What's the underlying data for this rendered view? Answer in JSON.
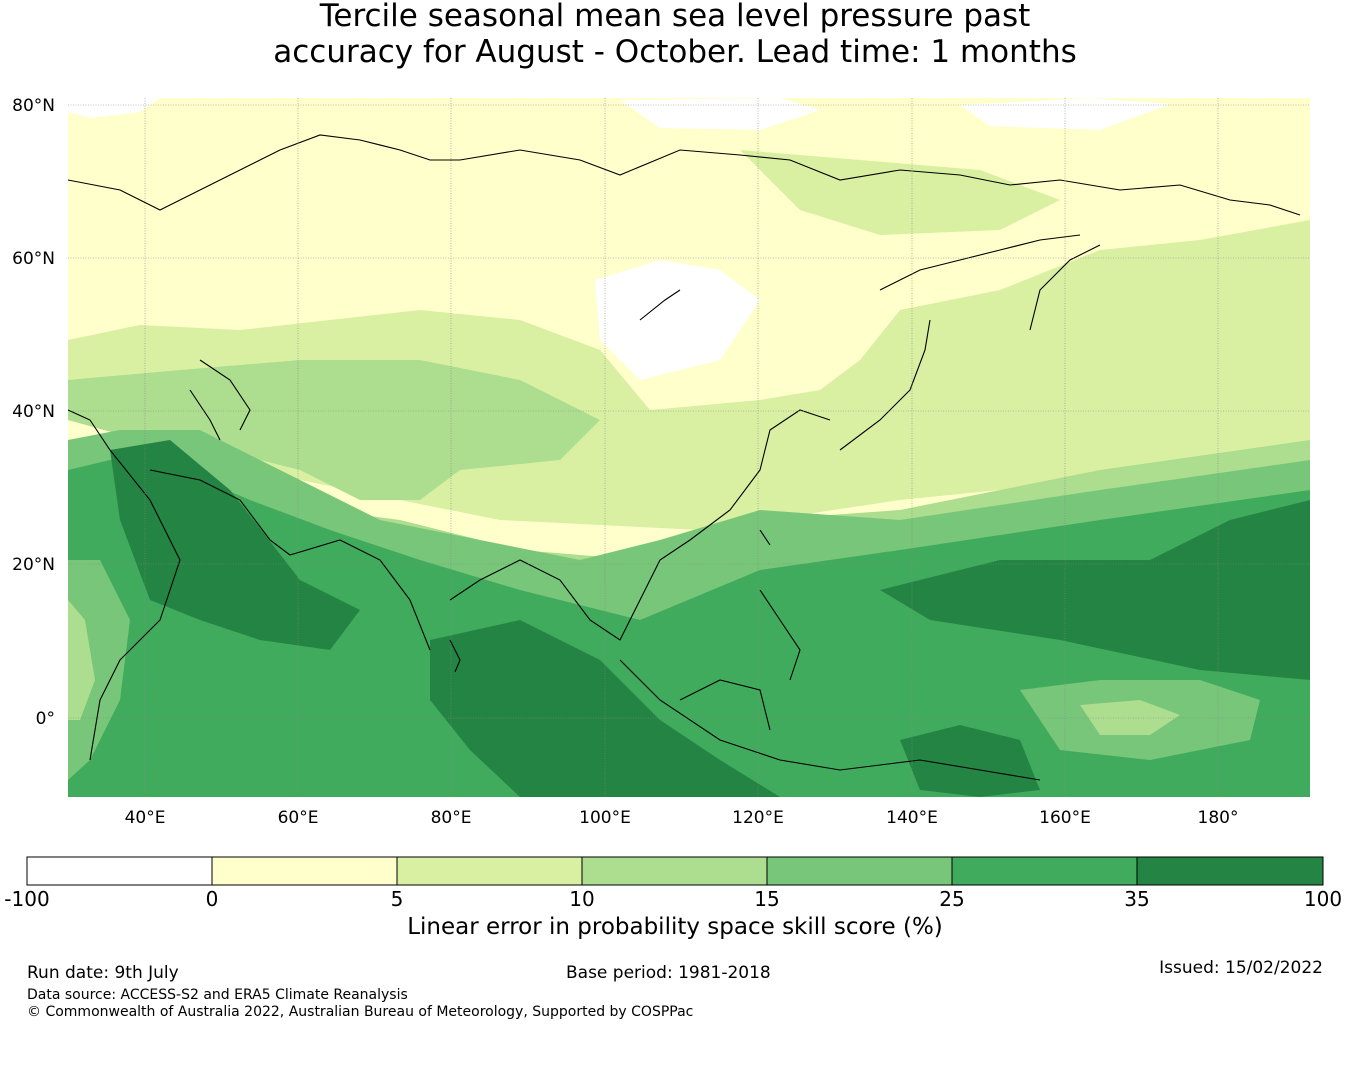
{
  "title_line1": "Tercile seasonal mean sea level pressure past",
  "title_line2": "accuracy for August - October. Lead time: 1 months",
  "map": {
    "lat_labels": [
      "80°N",
      "60°N",
      "40°N",
      "20°N",
      "0°"
    ],
    "lon_labels": [
      "40°E",
      "60°E",
      "80°E",
      "100°E",
      "120°E",
      "140°E",
      "160°E",
      "180°"
    ],
    "extent": {
      "lon_min": 30,
      "lon_max": 192,
      "lat_min": -10,
      "lat_max": 81
    }
  },
  "colorbar": {
    "bounds": [
      "-100",
      "0",
      "5",
      "10",
      "15",
      "25",
      "35",
      "100"
    ],
    "colors": [
      "#ffffff",
      "#ffffcc",
      "#d9f0a3",
      "#addd8e",
      "#78c679",
      "#41ab5d",
      "#238443"
    ],
    "label": "Linear error in probability space skill score (%)"
  },
  "footer": {
    "run_date": "Run date: 9th July",
    "base_period": "Base period: 1981-2018",
    "issued": "Issued: 15/02/2022",
    "data_source": "Data source: ACCESS-S2 and ERA5 Climate Reanalysis",
    "copyright": "© Commonwealth of Australia 2022, Australian Bureau of Meteorology, Supported by COSPPac"
  }
}
